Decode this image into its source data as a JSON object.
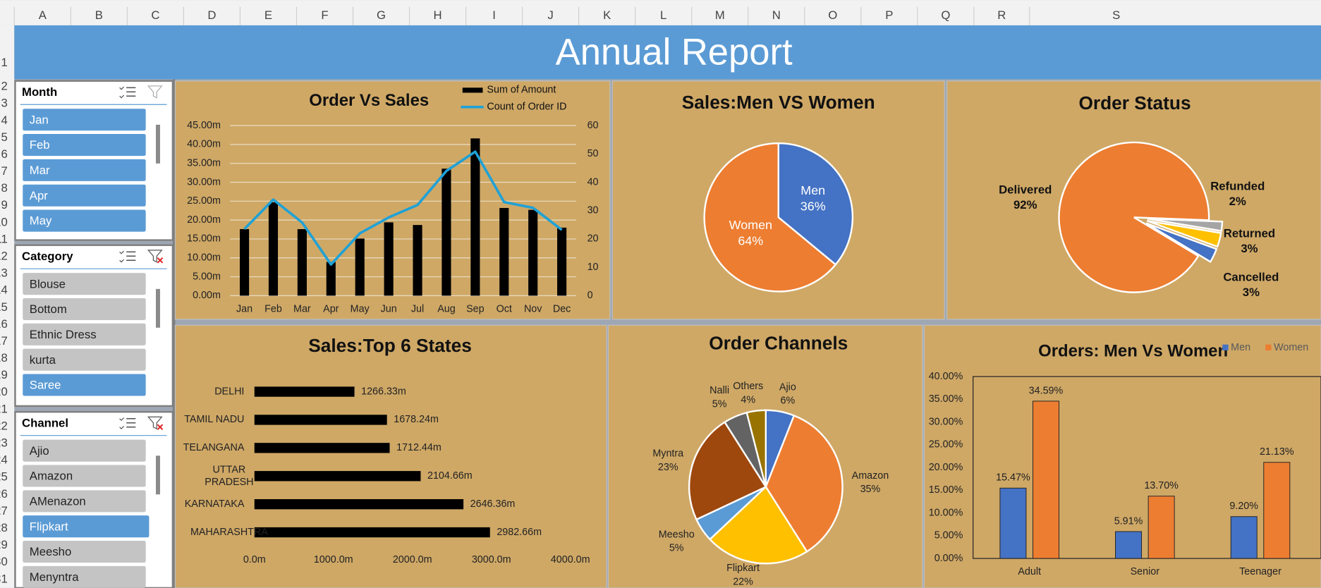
{
  "sheet": {
    "columns": [
      "A",
      "B",
      "C",
      "D",
      "E",
      "F",
      "G",
      "H",
      "I",
      "J",
      "K",
      "L",
      "M",
      "N",
      "O",
      "P",
      "Q",
      "R",
      "S"
    ],
    "rows": [
      1,
      2,
      3,
      4,
      5,
      6,
      7,
      8,
      9,
      10,
      11,
      12,
      13,
      14,
      15,
      16,
      17,
      18,
      19,
      20,
      21,
      22,
      23,
      24,
      25,
      26,
      27,
      28,
      29,
      30,
      31
    ]
  },
  "header": {
    "title": "Annual Report"
  },
  "slicers": [
    {
      "title": "Month",
      "items": [
        {
          "label": "Jan",
          "selected": true
        },
        {
          "label": "Feb",
          "selected": true
        },
        {
          "label": "Mar",
          "selected": true
        },
        {
          "label": "Apr",
          "selected": true
        },
        {
          "label": "May",
          "selected": true
        }
      ]
    },
    {
      "title": "Category",
      "items": [
        {
          "label": "Blouse",
          "selected": false
        },
        {
          "label": "Bottom",
          "selected": false
        },
        {
          "label": "Ethnic Dress",
          "selected": false
        },
        {
          "label": "kurta",
          "selected": false
        },
        {
          "label": "Saree",
          "selected": true
        }
      ]
    },
    {
      "title": "Channel",
      "items": [
        {
          "label": "Ajio",
          "selected": false
        },
        {
          "label": "Amazon",
          "selected": false
        },
        {
          "label": "AMenazon",
          "selected": false
        },
        {
          "label": "Flipkart",
          "selected": true
        },
        {
          "label": "Meesho",
          "selected": false
        },
        {
          "label": "Menyntra",
          "selected": false
        }
      ]
    }
  ],
  "chart_data": [
    {
      "type": "combo",
      "title": "Order Vs Sales",
      "categories": [
        "Jan",
        "Feb",
        "Mar",
        "Apr",
        "May",
        "Jun",
        "Jul",
        "Aug",
        "Sep",
        "Oct",
        "Nov",
        "Dec"
      ],
      "series": [
        {
          "name": "Sum of Amount",
          "type": "bar",
          "color": "#000000",
          "values": [
            17.6,
            24.7,
            17.6,
            8.9,
            15.1,
            19.4,
            18.7,
            33.6,
            41.6,
            23.2,
            22.7,
            18
          ]
        },
        {
          "name": "Count of Order ID",
          "type": "line",
          "axis": "y2",
          "color": "#1fa1d6",
          "values": [
            23.5,
            33.9,
            25.8,
            11,
            22,
            27.6,
            32,
            44,
            50.8,
            33,
            31,
            23.2
          ]
        }
      ],
      "ylim": [
        0,
        45
      ],
      "yticks": [
        {
          "value": 0,
          "label": "0.00m"
        },
        {
          "value": 5,
          "label": "5.00m"
        },
        {
          "value": 10,
          "label": "10.00m"
        },
        {
          "value": 15,
          "label": "15.00m"
        },
        {
          "value": 20,
          "label": "20.00m"
        },
        {
          "value": 25,
          "label": "25.00m"
        },
        {
          "value": 30,
          "label": "30.00m"
        },
        {
          "value": 35,
          "label": "35.00m"
        },
        {
          "value": 40,
          "label": "40.00m"
        },
        {
          "value": 45,
          "label": "45.00m"
        }
      ],
      "y2lim": [
        0,
        60
      ],
      "y2ticks": [
        0,
        10,
        20,
        30,
        40,
        50,
        60
      ],
      "grid": true,
      "legend": "top"
    },
    {
      "type": "pie",
      "title": "Sales:Men VS Women",
      "categories": [
        "Men",
        "Women"
      ],
      "values": [
        36,
        64
      ],
      "value_labels": [
        "36%",
        "64%"
      ],
      "colors": [
        "#4472c4",
        "#ed7d31"
      ]
    },
    {
      "type": "pie",
      "title": "Order Status",
      "categories": [
        "Delivered",
        "Refunded",
        "Returned",
        "Cancelled"
      ],
      "values": [
        92,
        2,
        3,
        3
      ],
      "value_labels": [
        "92%",
        "2%",
        "3%",
        "3%"
      ],
      "colors": [
        "#ed7d31",
        "#a5a5a5",
        "#ffc000",
        "#4472c4"
      ],
      "explode": [
        false,
        true,
        true,
        true
      ]
    },
    {
      "type": "barh",
      "title": "Sales:Top 6 States",
      "categories": [
        "DELHI",
        "TAMIL NADU",
        "TELANGANA",
        "UTTAR PRADESH",
        "KARNATAKA",
        "MAHARASHTRA"
      ],
      "values": [
        1266.33,
        1678.24,
        1712.44,
        2104.66,
        2646.36,
        2982.66
      ],
      "value_labels": [
        "1266.33m",
        "1678.24m",
        "1712.44m",
        "2104.66m",
        "2646.36m",
        "2982.66m"
      ],
      "color": "#000000",
      "xlim": [
        0,
        4000
      ],
      "xticks": [
        {
          "value": 0,
          "label": "0.0m"
        },
        {
          "value": 1000,
          "label": "1000.0m"
        },
        {
          "value": 2000,
          "label": "2000.0m"
        },
        {
          "value": 3000,
          "label": "3000.0m"
        },
        {
          "value": 4000,
          "label": "4000.0m"
        }
      ]
    },
    {
      "type": "pie",
      "title": "Order Channels",
      "categories": [
        "Ajio",
        "Amazon",
        "Flipkart",
        "Meesho",
        "Myntra",
        "Nalli",
        "Others"
      ],
      "values": [
        6,
        35,
        22,
        5,
        23,
        5,
        4
      ],
      "value_labels": [
        "6%",
        "35%",
        "22%",
        "5%",
        "23%",
        "5%",
        "4%"
      ],
      "colors": [
        "#4472c4",
        "#ed7d31",
        "#ffc000",
        "#5b9bd5",
        "#9e480e",
        "#636363",
        "#997300"
      ]
    },
    {
      "type": "bar",
      "title": "Orders: Men Vs Women",
      "categories": [
        "Adult",
        "Senior",
        "Teenager"
      ],
      "series": [
        {
          "name": "Men",
          "color": "#4472c4",
          "values": [
            15.47,
            5.91,
            9.2
          ],
          "value_labels": [
            "15.47%",
            "5.91%",
            "9.20%"
          ]
        },
        {
          "name": "Women",
          "color": "#ed7d31",
          "values": [
            34.59,
            13.7,
            21.13
          ],
          "value_labels": [
            "34.59%",
            "13.70%",
            "21.13%"
          ]
        }
      ],
      "ylim": [
        0,
        40
      ],
      "yticks": [
        {
          "value": 0,
          "label": "0.00%"
        },
        {
          "value": 5,
          "label": "5.00%"
        },
        {
          "value": 10,
          "label": "10.00%"
        },
        {
          "value": 15,
          "label": "15.00%"
        },
        {
          "value": 20,
          "label": "20.00%"
        },
        {
          "value": 25,
          "label": "25.00%"
        },
        {
          "value": 30,
          "label": "30.00%"
        },
        {
          "value": 35,
          "label": "35.00%"
        },
        {
          "value": 40,
          "label": "40.00%"
        }
      ],
      "legend": "top-right"
    }
  ]
}
